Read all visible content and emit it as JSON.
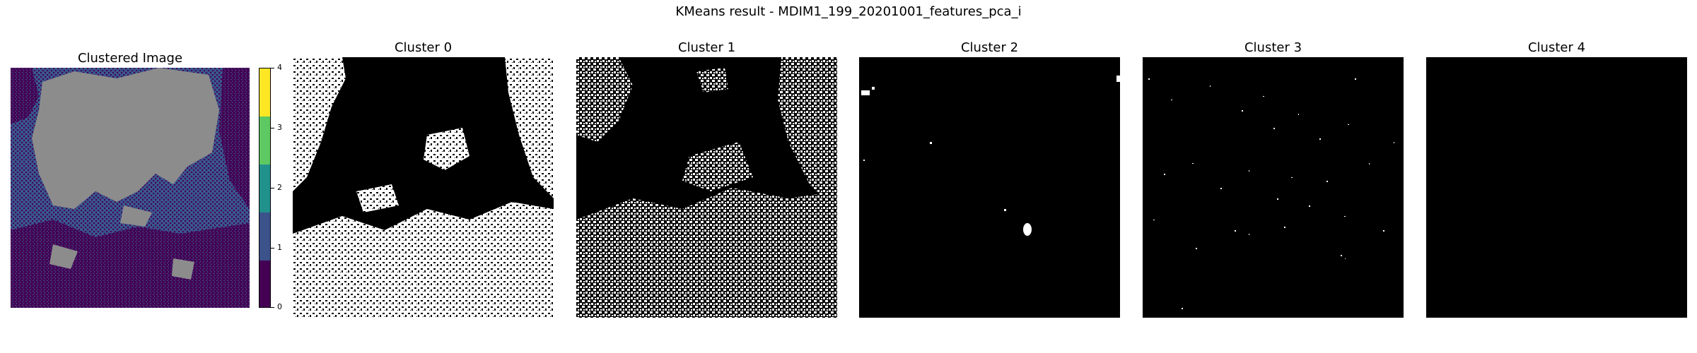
{
  "figure": {
    "suptitle": "KMeans result - MDIM1_199_20201001_features_pca_i"
  },
  "colors": {
    "cluster_0": "#440154",
    "cluster_1": "#3b528b",
    "cluster_2": "#21918c",
    "cluster_3": "#5ec962",
    "cluster_4": "#fde725",
    "no_data_gray": "#8c8c8c",
    "mask_on": "#ffffff",
    "mask_off": "#000000"
  },
  "chart_data": [
    {
      "type": "heatmap",
      "title": "Clustered Image",
      "colorbar": {
        "ticks": [
          "0",
          "1",
          "2",
          "3",
          "4"
        ],
        "colormap": "viridis",
        "range": [
          0,
          4
        ]
      },
      "categories": [
        "0",
        "1",
        "2",
        "3",
        "4"
      ]
    },
    {
      "type": "heatmap",
      "title": "Cluster 0",
      "mask_of_cluster": 0,
      "pixel_coverage": "high"
    },
    {
      "type": "heatmap",
      "title": "Cluster 1",
      "mask_of_cluster": 1,
      "pixel_coverage": "medium"
    },
    {
      "type": "heatmap",
      "title": "Cluster 2",
      "mask_of_cluster": 2,
      "pixel_coverage": "very low"
    },
    {
      "type": "heatmap",
      "title": "Cluster 3",
      "mask_of_cluster": 3,
      "pixel_coverage": "very low"
    },
    {
      "type": "heatmap",
      "title": "Cluster 4",
      "mask_of_cluster": 4,
      "pixel_coverage": "none"
    }
  ]
}
